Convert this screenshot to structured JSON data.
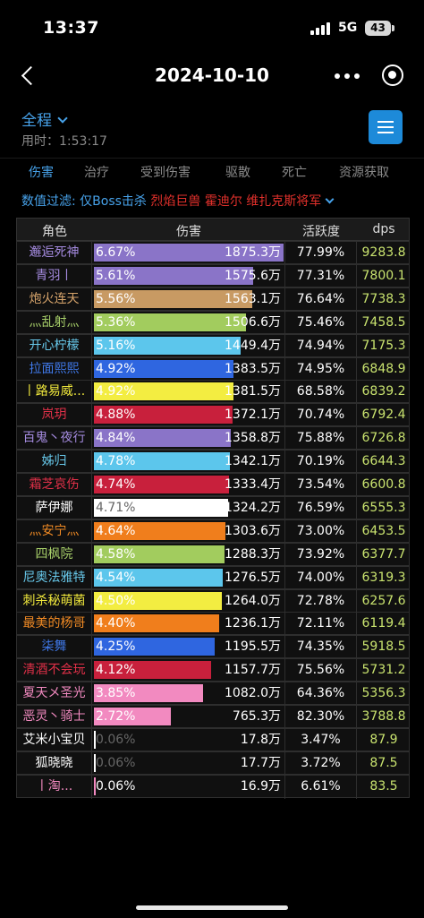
{
  "status": {
    "time": "13:37",
    "network": "5G",
    "battery": "43"
  },
  "header": {
    "title": "2024-10-10"
  },
  "phase": {
    "label": "全程",
    "elapsed": "用时：1:53:17"
  },
  "tabs": [
    {
      "label": "伤害",
      "active": true
    },
    {
      "label": "治疗",
      "active": false
    },
    {
      "label": "受到伤害",
      "active": false
    },
    {
      "label": "驱散",
      "active": false
    },
    {
      "label": "死亡",
      "active": false
    },
    {
      "label": "资源获取",
      "active": false
    }
  ],
  "filter": {
    "label": "数值过滤:",
    "value": "仅Boss击杀",
    "targets": "烈焰巨兽 霍迪尔 维扎克斯将军"
  },
  "columns": {
    "role": "角色",
    "damage": "伤害",
    "activity": "活跃度",
    "dps": "dps"
  },
  "rows": [
    {
      "name": "邂逅死神",
      "name_color": "#a58be0",
      "bar_color": "#8a74c8",
      "fraction": 1.0,
      "pct": "6.67%",
      "amount": "1875.3万",
      "activity": "77.99%",
      "dps": "9283.8"
    },
    {
      "name": "青羽丨",
      "name_color": "#a58be0",
      "bar_color": "#8a74c8",
      "fraction": 0.841,
      "pct": "5.61%",
      "amount": "1575.6万",
      "activity": "77.31%",
      "dps": "7800.1"
    },
    {
      "name": "炮火连天",
      "name_color": "#d6a46b",
      "bar_color": "#c89a63",
      "fraction": 0.834,
      "pct": "5.56%",
      "amount": "1563.1万",
      "activity": "76.64%",
      "dps": "7738.3"
    },
    {
      "name": "灬乱射灬",
      "name_color": "#a8d06a",
      "bar_color": "#a2cc5e",
      "fraction": 0.804,
      "pct": "5.36%",
      "amount": "1506.6万",
      "activity": "75.46%",
      "dps": "7458.5"
    },
    {
      "name": "开心柠檬",
      "name_color": "#67c8ea",
      "bar_color": "#5cc6ec",
      "fraction": 0.774,
      "pct": "5.16%",
      "amount": "1449.4万",
      "activity": "74.94%",
      "dps": "7175.3"
    },
    {
      "name": "拉面熙熙",
      "name_color": "#3f78e8",
      "bar_color": "#2f66e0",
      "fraction": 0.738,
      "pct": "4.92%",
      "amount": "1383.5万",
      "activity": "74.95%",
      "dps": "6848.9"
    },
    {
      "name": "丨路易威...",
      "name_color": "#f0e83c",
      "bar_color": "#f3ed41",
      "fraction": 0.737,
      "pct": "4.92%",
      "amount": "1381.5万",
      "activity": "68.58%",
      "dps": "6839.2"
    },
    {
      "name": "岚玥",
      "name_color": "#e03048",
      "bar_color": "#c8203c",
      "fraction": 0.732,
      "pct": "4.88%",
      "amount": "1372.1万",
      "activity": "70.74%",
      "dps": "6792.4"
    },
    {
      "name": "百鬼丶夜行",
      "name_color": "#a58be0",
      "bar_color": "#8a74c8",
      "fraction": 0.724,
      "pct": "4.84%",
      "amount": "1358.8万",
      "activity": "75.88%",
      "dps": "6726.8"
    },
    {
      "name": "姊归",
      "name_color": "#67c8ea",
      "bar_color": "#5cc6ec",
      "fraction": 0.716,
      "pct": "4.78%",
      "amount": "1342.1万",
      "activity": "70.19%",
      "dps": "6644.3"
    },
    {
      "name": "霜芝哀伤",
      "name_color": "#e03048",
      "bar_color": "#c8203c",
      "fraction": 0.711,
      "pct": "4.74%",
      "amount": "1333.4万",
      "activity": "73.54%",
      "dps": "6600.8"
    },
    {
      "name": "萨伊娜",
      "name_color": "#ffffff",
      "bar_color": "#ffffff",
      "fraction": 0.706,
      "pct": "4.71%",
      "amount": "1324.2万",
      "activity": "76.59%",
      "dps": "6555.3"
    },
    {
      "name": "灬安宁灬",
      "name_color": "#f08a24",
      "bar_color": "#f07e1c",
      "fraction": 0.695,
      "pct": "4.64%",
      "amount": "1303.6万",
      "activity": "73.00%",
      "dps": "6453.5"
    },
    {
      "name": "四枫院",
      "name_color": "#a8d06a",
      "bar_color": "#a2cc5e",
      "fraction": 0.687,
      "pct": "4.58%",
      "amount": "1288.3万",
      "activity": "73.92%",
      "dps": "6377.7"
    },
    {
      "name": "尼奥法雅特",
      "name_color": "#67c8ea",
      "bar_color": "#5cc6ec",
      "fraction": 0.681,
      "pct": "4.54%",
      "amount": "1276.5万",
      "activity": "74.00%",
      "dps": "6319.3"
    },
    {
      "name": "刺杀秘萌菌",
      "name_color": "#f0e83c",
      "bar_color": "#f3ed41",
      "fraction": 0.674,
      "pct": "4.50%",
      "amount": "1264.0万",
      "activity": "72.78%",
      "dps": "6257.6"
    },
    {
      "name": "最美的杨哥",
      "name_color": "#f08a24",
      "bar_color": "#f07e1c",
      "fraction": 0.659,
      "pct": "4.40%",
      "amount": "1236.1万",
      "activity": "72.11%",
      "dps": "6119.4"
    },
    {
      "name": "柒舞",
      "name_color": "#3f78e8",
      "bar_color": "#2f66e0",
      "fraction": 0.637,
      "pct": "4.25%",
      "amount": "1195.5万",
      "activity": "74.35%",
      "dps": "5918.5"
    },
    {
      "name": "清酒不会玩",
      "name_color": "#e03048",
      "bar_color": "#c8203c",
      "fraction": 0.617,
      "pct": "4.12%",
      "amount": "1157.7万",
      "activity": "75.56%",
      "dps": "5731.2"
    },
    {
      "name": "夏天メ圣光",
      "name_color": "#f28ac0",
      "bar_color": "#f28ac0",
      "fraction": 0.577,
      "pct": "3.85%",
      "amount": "1082.0万",
      "activity": "64.36%",
      "dps": "5356.3"
    },
    {
      "name": "恶灵丶骑士",
      "name_color": "#f28ac0",
      "bar_color": "#f28ac0",
      "fraction": 0.408,
      "pct": "2.72%",
      "amount": "765.3万",
      "activity": "82.30%",
      "dps": "3788.8"
    },
    {
      "name": "艾米小宝贝",
      "name_color": "#ffffff",
      "bar_color": "#ffffff",
      "fraction": 0.01,
      "pct": "0.06%",
      "amount": "17.8万",
      "activity": "3.47%",
      "dps": "87.9"
    },
    {
      "name": "狐晓晓",
      "name_color": "#ffffff",
      "bar_color": "#ffffff",
      "fraction": 0.01,
      "pct": "0.06%",
      "amount": "17.7万",
      "activity": "3.72%",
      "dps": "87.5"
    },
    {
      "name": "丨淘...",
      "name_color": "#f28ac0",
      "bar_color": "#f28ac0",
      "fraction": 0.01,
      "pct": "0.06%",
      "amount": "16.9万",
      "activity": "6.61%",
      "dps": "83.5"
    }
  ]
}
